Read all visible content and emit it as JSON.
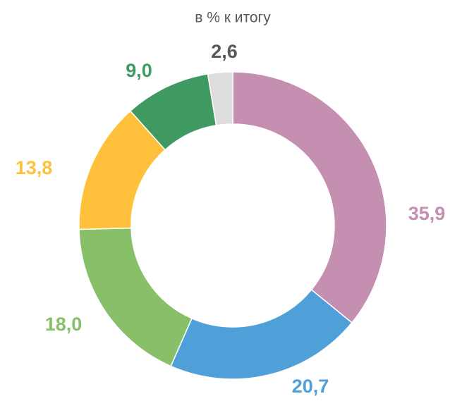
{
  "chart_data": {
    "type": "donut",
    "title": "в % к итогу",
    "values": [
      35.9,
      20.7,
      18.0,
      13.8,
      9.0,
      2.6
    ],
    "value_labels": [
      "35,9",
      "20,7",
      "18,0",
      "13,8",
      "9,0",
      "2,6"
    ],
    "colors": [
      "#c48fb0",
      "#4f9fd8",
      "#88c06a",
      "#ffc13b",
      "#3f9a62",
      "#dddddd"
    ],
    "label_colors": [
      "#c48fb0",
      "#4f9fd8",
      "#88c06a",
      "#ffc13b",
      "#3f9a62",
      "#595959"
    ]
  }
}
